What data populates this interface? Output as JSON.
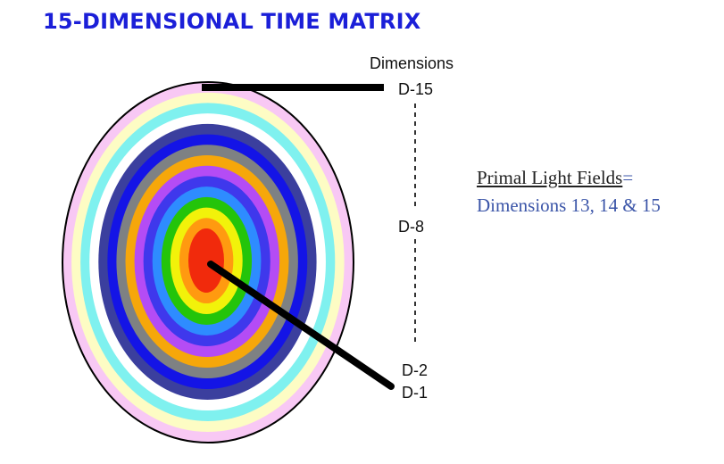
{
  "title": "15-DIMENSIONAL TIME MATRIX",
  "dimensions_header": "Dimensions",
  "labels": {
    "d15": "D-15",
    "d8": "D-8",
    "d2": "D-2",
    "d1": "D-1"
  },
  "primal": {
    "title": "Primal Light Fields",
    "equals": "=",
    "subtitle": "Dimensions 13, 14 & 15"
  },
  "ring_colors": [
    "#f8c8f4",
    "#fdfcc4",
    "#7ff1ef",
    "#ffffff",
    "#3b3f9e",
    "#1414e6",
    "#7e8183",
    "#f6a70a",
    "#b44cf5",
    "#3f38ec",
    "#2e8cff",
    "#24c40a",
    "#f2f20a",
    "#ff9a10",
    "#f12a0c"
  ],
  "colors": {
    "title": "#1b1fd8",
    "primal_blue": "#3b55a8",
    "pointer": "#000000"
  }
}
